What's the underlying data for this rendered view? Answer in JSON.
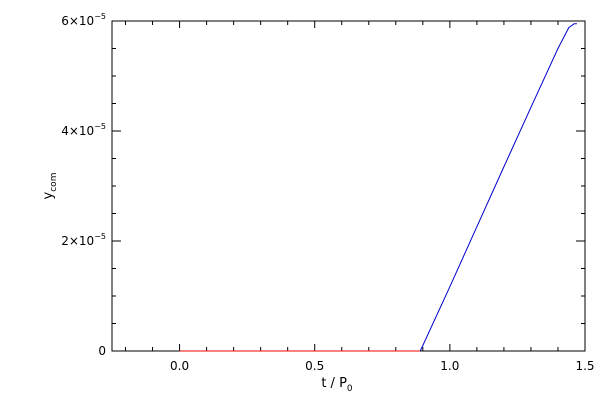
{
  "chart_data": {
    "type": "line",
    "title": "",
    "xlabel": "t / P",
    "xlabel_sub": "0",
    "ylabel": "y",
    "ylabel_sub": "com",
    "xlim": [
      -0.25,
      1.5
    ],
    "ylim": [
      0,
      6e-05
    ],
    "x_ticks": [
      {
        "value": 0.0,
        "label": "0.0"
      },
      {
        "value": 0.5,
        "label": "0.5"
      },
      {
        "value": 1.0,
        "label": "1.0"
      },
      {
        "value": 1.5,
        "label": "1.5"
      }
    ],
    "y_ticks": [
      {
        "value": 0,
        "mantissa": "0",
        "exponent": ""
      },
      {
        "value": 2e-05,
        "mantissa": "2×10",
        "exponent": "−5"
      },
      {
        "value": 4e-05,
        "mantissa": "4×10",
        "exponent": "−5"
      },
      {
        "value": 6e-05,
        "mantissa": "6×10",
        "exponent": "−5"
      }
    ],
    "grid": false,
    "series": [
      {
        "color": "#ff0000",
        "x": [
          0.0,
          0.3,
          0.6,
          0.89
        ],
        "y": [
          0,
          0,
          0,
          0
        ]
      },
      {
        "color": "#0000cc",
        "x": [
          0.89,
          0.9,
          1.0,
          1.1,
          1.2,
          1.3,
          1.4,
          1.44,
          1.46,
          1.47
        ],
        "y": [
          0,
          1e-06,
          1.17e-05,
          2.26e-05,
          3.35e-05,
          4.43e-05,
          5.5e-05,
          5.88e-05,
          5.95e-05,
          5.95e-05
        ]
      }
    ]
  }
}
